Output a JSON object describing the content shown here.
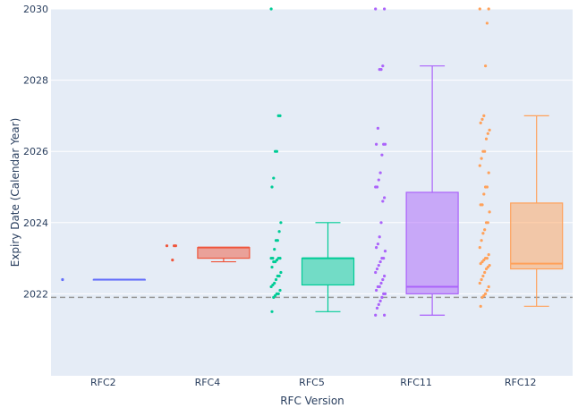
{
  "chart_data": {
    "type": "box",
    "xlabel": "RFC Version",
    "ylabel": "Expiry Date (Calendar Year)",
    "categories": [
      "RFC2",
      "RFC4",
      "RFC5",
      "RFC11",
      "RFC12"
    ],
    "ylim": [
      2020,
      2030
    ],
    "yticks": [
      2022,
      2024,
      2026,
      2028,
      2030
    ],
    "reference_line": {
      "y": 2021.9,
      "style": "dashed",
      "color": "#999999"
    },
    "grid": true,
    "series": [
      {
        "category": "RFC2",
        "color": "#636efa",
        "box": {
          "min": 2022.4,
          "q1": 2022.4,
          "median": 2022.4,
          "q3": 2022.4,
          "max": 2022.4
        },
        "points": [
          2022.4
        ]
      },
      {
        "category": "RFC4",
        "color": "#ef553b",
        "box": {
          "min": 2022.9,
          "q1": 2023.0,
          "median": 2023.3,
          "q3": 2023.3,
          "max": 2023.3
        },
        "points": [
          2023.35,
          2023.35,
          2023.35,
          2022.95
        ]
      },
      {
        "category": "RFC5",
        "color": "#00cc96",
        "box": {
          "min": 2021.5,
          "q1": 2022.25,
          "median": 2023.0,
          "q3": 2023.0,
          "max": 2024.0
        },
        "points": [
          2030.0,
          2027.0,
          2027.0,
          2026.0,
          2026.0,
          2025.25,
          2025.0,
          2024.0,
          2023.75,
          2023.5,
          2023.5,
          2023.25,
          2023.0,
          2023.0,
          2023.0,
          2023.0,
          2022.95,
          2022.9,
          2022.9,
          2022.75,
          2022.6,
          2022.5,
          2022.5,
          2022.4,
          2022.3,
          2022.25,
          2022.2,
          2022.1,
          2022.0,
          2022.0,
          2021.95,
          2021.9,
          2021.5
        ]
      },
      {
        "category": "RFC11",
        "color": "#ab63fa",
        "box": {
          "min": 2021.4,
          "q1": 2022.0,
          "median": 2022.2,
          "q3": 2024.85,
          "max": 2028.4
        },
        "points": [
          2030.0,
          2030.0,
          2028.4,
          2028.3,
          2028.3,
          2026.65,
          2026.2,
          2026.2,
          2026.2,
          2025.9,
          2025.4,
          2025.2,
          2025.0,
          2025.0,
          2024.7,
          2024.6,
          2024.0,
          2023.6,
          2023.4,
          2023.3,
          2023.2,
          2023.0,
          2023.0,
          2022.9,
          2022.8,
          2022.7,
          2022.6,
          2022.5,
          2022.4,
          2022.3,
          2022.2,
          2022.2,
          2022.1,
          2022.0,
          2022.0,
          2021.9,
          2021.8,
          2021.7,
          2021.6,
          2021.4,
          2021.4
        ]
      },
      {
        "category": "RFC12",
        "color": "#ffa15a",
        "box": {
          "min": 2021.65,
          "q1": 2022.7,
          "median": 2022.85,
          "q3": 2024.55,
          "max": 2027.0
        },
        "points": [
          2030.0,
          2030.0,
          2029.6,
          2028.4,
          2027.0,
          2026.9,
          2026.8,
          2026.6,
          2026.5,
          2026.35,
          2026.0,
          2026.0,
          2025.8,
          2025.6,
          2025.4,
          2025.0,
          2025.0,
          2024.8,
          2024.5,
          2024.5,
          2024.3,
          2024.0,
          2024.0,
          2023.8,
          2023.7,
          2023.5,
          2023.3,
          2023.1,
          2023.0,
          2023.0,
          2022.95,
          2022.9,
          2022.85,
          2022.8,
          2022.75,
          2022.7,
          2022.6,
          2022.5,
          2022.4,
          2022.3,
          2022.2,
          2022.1,
          2022.0,
          2021.95,
          2021.9,
          2021.65
        ]
      }
    ]
  }
}
